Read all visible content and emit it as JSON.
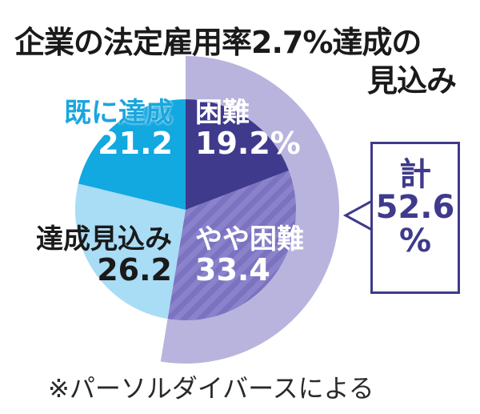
{
  "title": {
    "line1": "企業の法定雇用率2.7%達成の",
    "line2": "見込み"
  },
  "chart_data": {
    "type": "pie",
    "title": "企業の法定雇用率2.7%達成の見込み",
    "unit": "%",
    "categories": [
      "困難",
      "やや困難",
      "達成見込み",
      "既に達成"
    ],
    "values": [
      19.2,
      33.4,
      26.2,
      21.2
    ],
    "colors": [
      "#3f3a8c",
      "#7f77c4",
      "#a9dcf5",
      "#12a8e0"
    ],
    "start_angle": "12 o'clock, clockwise",
    "highlight_ring": {
      "covers": [
        "困難",
        "やや困難"
      ],
      "total": 52.6,
      "color": "#b8b4de"
    },
    "annotation": "計 52.6 %",
    "source": "※パーソルダイバースによる"
  },
  "labels": {
    "kizon": {
      "name": "既に達成",
      "value": "21.2"
    },
    "konnan": {
      "name": "困難",
      "value": "19.2%"
    },
    "mikomi": {
      "name": "達成見込み",
      "value": "26.2"
    },
    "yaya": {
      "name": "やや困難",
      "value": "33.4"
    }
  },
  "callout": {
    "label": "計",
    "value": "52.6",
    "unit": "%"
  },
  "footer": {
    "source": "※パーソルダイバースによる"
  }
}
